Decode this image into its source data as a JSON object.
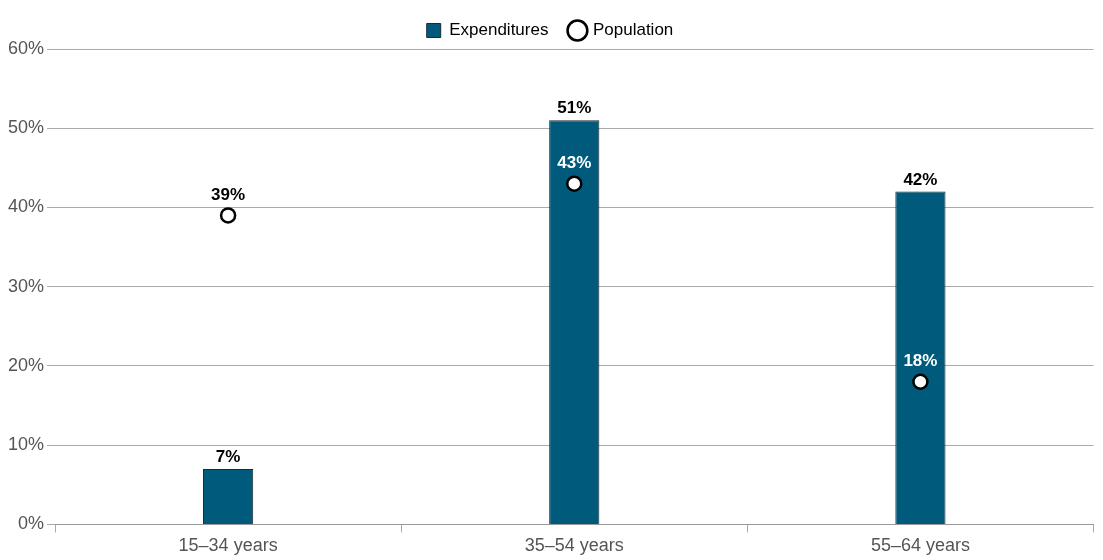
{
  "chart_data": {
    "type": "bar",
    "categories": [
      "15–34 years",
      "35–54 years",
      "55–64 years"
    ],
    "series": [
      {
        "name": "Expenditures",
        "color": "#005a7c",
        "values": [
          7,
          51,
          42
        ],
        "value_labels": [
          "7%",
          "51%",
          "42%"
        ]
      },
      {
        "name": "Population",
        "type": "scatter",
        "color": "#ffffff",
        "x": [
          "15–34 years",
          "35–54 years",
          "55–64 years"
        ],
        "values": [
          39,
          43,
          18
        ],
        "value_labels": [
          "39%",
          "43%",
          "18%"
        ]
      }
    ],
    "ylim": [
      0,
      60
    ],
    "yticks": [
      {
        "value": 0,
        "label": "0%"
      },
      {
        "value": 10,
        "label": "10%"
      },
      {
        "value": 20,
        "label": "20%"
      },
      {
        "value": 30,
        "label": "30%"
      },
      {
        "value": 40,
        "label": "40%"
      },
      {
        "value": 50,
        "label": "50%"
      },
      {
        "value": 60,
        "label": "60%"
      }
    ],
    "grid": "y",
    "legend": "top",
    "marker": "circle"
  }
}
